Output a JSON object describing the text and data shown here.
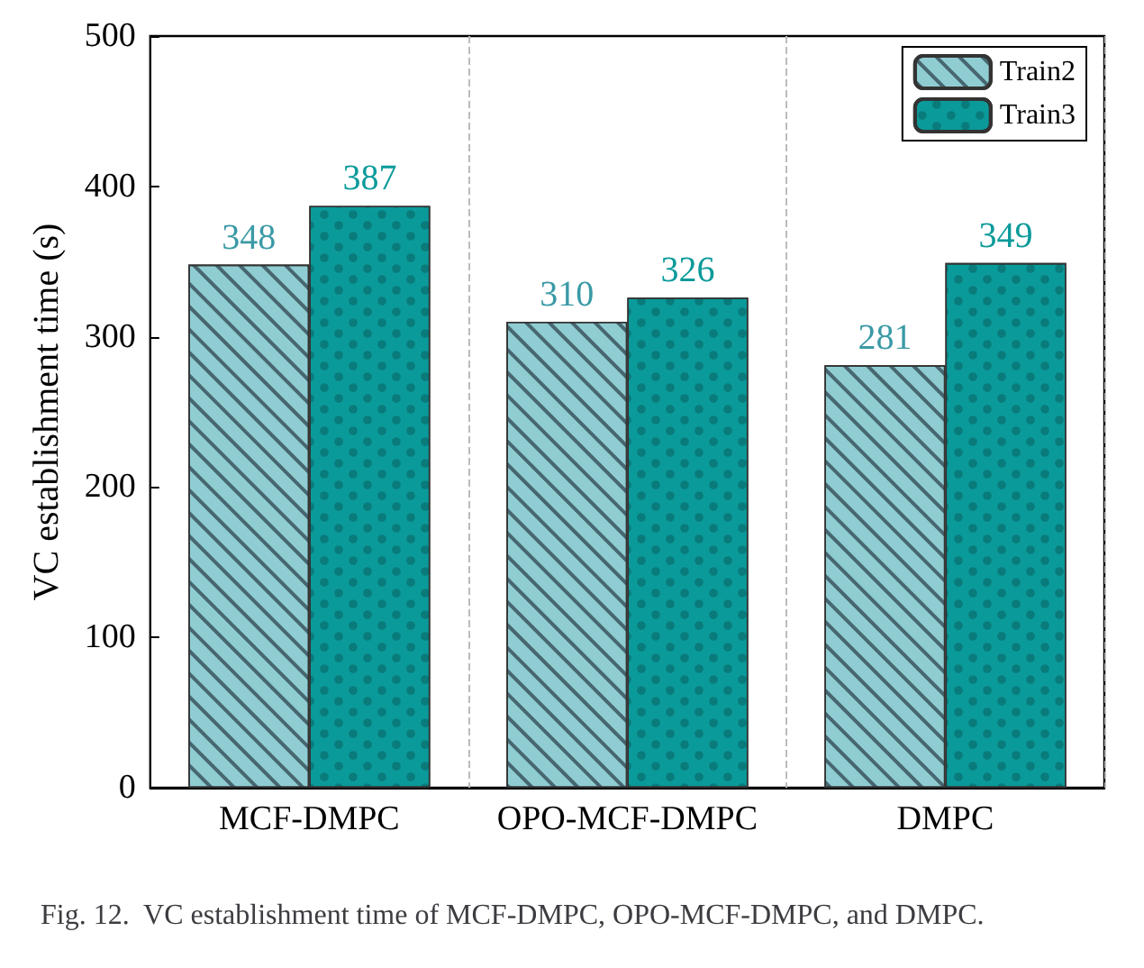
{
  "chart_data": {
    "type": "bar",
    "categories": [
      "MCF-DMPC",
      "OPO-MCF-DMPC",
      "DMPC"
    ],
    "series": [
      {
        "name": "Train2",
        "color": "#8fcdd3",
        "values": [
          348,
          310,
          281
        ]
      },
      {
        "name": "Train3",
        "color": "#0b9a9a",
        "values": [
          387,
          326,
          349
        ]
      }
    ],
    "ylabel": "VC establishment time (s)",
    "ylim": [
      0,
      500
    ],
    "yticks": [
      0,
      100,
      200,
      300,
      400,
      500
    ],
    "grid": "x",
    "legend": "top right",
    "data_labels": true,
    "annotations": [
      "Fig. 12.  VC establishment time of MCF-DMPC, OPO-MCF-DMPC, and DMPC."
    ]
  }
}
